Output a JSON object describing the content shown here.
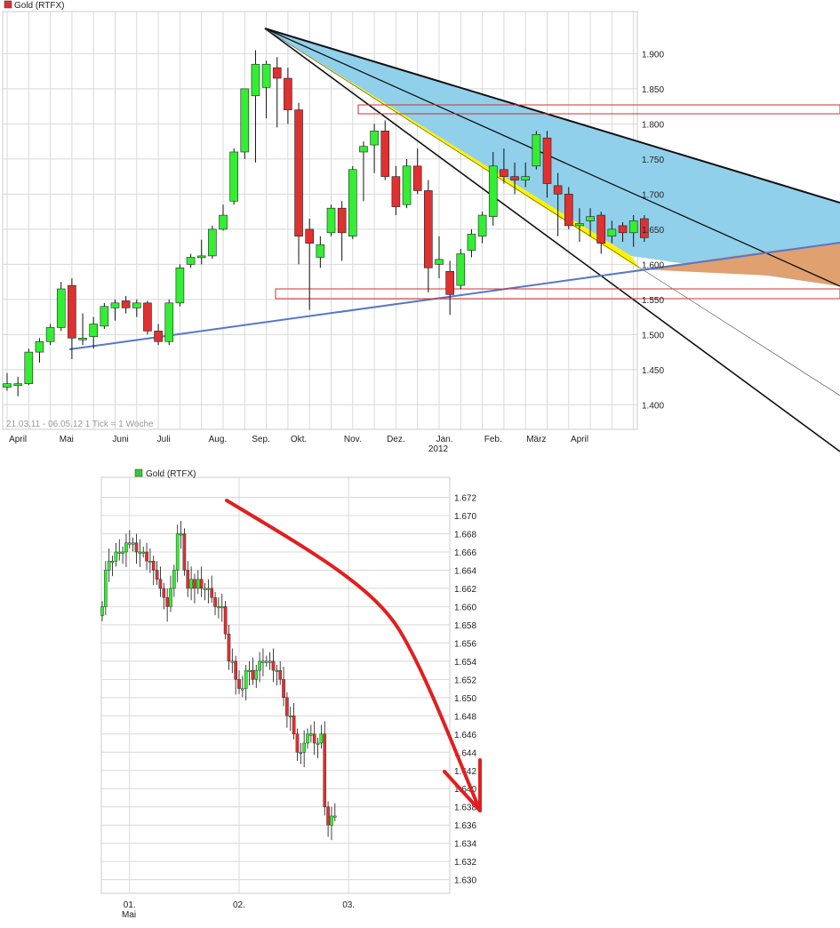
{
  "chart_data": [
    {
      "type": "candlestick",
      "legend": "Gold (RTFX)",
      "legend_color": "#e03030",
      "info": "21.03.11 - 06.05.12  1 Tick = 1 Woche",
      "y_ticks": [
        "1.900",
        "1.850",
        "1.800",
        "1.750",
        "1.700",
        "1.650",
        "1.600",
        "1.550",
        "1.500",
        "1.450",
        "1.400"
      ],
      "y_tick_values": [
        1900,
        1850,
        1800,
        1750,
        1700,
        1650,
        1600,
        1550,
        1500,
        1450,
        1400
      ],
      "ylim": [
        1365,
        1960
      ],
      "x_labels": [
        "April",
        "Mai",
        "Juni",
        "Juli",
        "Aug.",
        "Sep.",
        "Okt.",
        "Nov.",
        "Dez.",
        "Jan.",
        "Feb.",
        "März",
        "April"
      ],
      "x_label_index": [
        1,
        5.5,
        10.5,
        14.5,
        19.5,
        23.5,
        27,
        32,
        36,
        40.5,
        45,
        49,
        53
      ],
      "year_label": "2012",
      "candles": [
        {
          "o": 1425,
          "h": 1445,
          "l": 1420,
          "c": 1430
        },
        {
          "o": 1428,
          "h": 1440,
          "l": 1412,
          "c": 1430
        },
        {
          "o": 1430,
          "h": 1480,
          "l": 1428,
          "c": 1475
        },
        {
          "o": 1475,
          "h": 1495,
          "l": 1460,
          "c": 1490
        },
        {
          "o": 1490,
          "h": 1515,
          "l": 1485,
          "c": 1510
        },
        {
          "o": 1510,
          "h": 1575,
          "l": 1505,
          "c": 1565
        },
        {
          "o": 1570,
          "h": 1580,
          "l": 1465,
          "c": 1495
        },
        {
          "o": 1495,
          "h": 1530,
          "l": 1485,
          "c": 1495
        },
        {
          "o": 1497,
          "h": 1525,
          "l": 1480,
          "c": 1515
        },
        {
          "o": 1512,
          "h": 1545,
          "l": 1508,
          "c": 1540
        },
        {
          "o": 1538,
          "h": 1550,
          "l": 1520,
          "c": 1545
        },
        {
          "o": 1548,
          "h": 1555,
          "l": 1530,
          "c": 1538
        },
        {
          "o": 1538,
          "h": 1550,
          "l": 1525,
          "c": 1545
        },
        {
          "o": 1545,
          "h": 1548,
          "l": 1500,
          "c": 1505
        },
        {
          "o": 1505,
          "h": 1515,
          "l": 1485,
          "c": 1490
        },
        {
          "o": 1490,
          "h": 1550,
          "l": 1485,
          "c": 1545
        },
        {
          "o": 1545,
          "h": 1600,
          "l": 1540,
          "c": 1595
        },
        {
          "o": 1600,
          "h": 1615,
          "l": 1595,
          "c": 1610
        },
        {
          "o": 1610,
          "h": 1635,
          "l": 1600,
          "c": 1612
        },
        {
          "o": 1612,
          "h": 1655,
          "l": 1608,
          "c": 1650
        },
        {
          "o": 1650,
          "h": 1685,
          "l": 1648,
          "c": 1670
        },
        {
          "o": 1690,
          "h": 1765,
          "l": 1685,
          "c": 1760
        },
        {
          "o": 1760,
          "h": 1850,
          "l": 1750,
          "c": 1850
        },
        {
          "o": 1840,
          "h": 1905,
          "l": 1745,
          "c": 1885
        },
        {
          "o": 1852,
          "h": 1890,
          "l": 1808,
          "c": 1885
        },
        {
          "o": 1880,
          "h": 1895,
          "l": 1795,
          "c": 1865
        },
        {
          "o": 1865,
          "h": 1880,
          "l": 1800,
          "c": 1820
        },
        {
          "o": 1820,
          "h": 1830,
          "l": 1600,
          "c": 1640
        },
        {
          "o": 1650,
          "h": 1665,
          "l": 1535,
          "c": 1630
        },
        {
          "o": 1610,
          "h": 1640,
          "l": 1595,
          "c": 1628
        },
        {
          "o": 1645,
          "h": 1685,
          "l": 1640,
          "c": 1680
        },
        {
          "o": 1680,
          "h": 1690,
          "l": 1605,
          "c": 1645
        },
        {
          "o": 1640,
          "h": 1740,
          "l": 1636,
          "c": 1735
        },
        {
          "o": 1760,
          "h": 1775,
          "l": 1690,
          "c": 1768
        },
        {
          "o": 1770,
          "h": 1800,
          "l": 1730,
          "c": 1790
        },
        {
          "o": 1790,
          "h": 1805,
          "l": 1720,
          "c": 1725
        },
        {
          "o": 1725,
          "h": 1740,
          "l": 1670,
          "c": 1682
        },
        {
          "o": 1685,
          "h": 1750,
          "l": 1680,
          "c": 1740
        },
        {
          "o": 1740,
          "h": 1765,
          "l": 1700,
          "c": 1705
        },
        {
          "o": 1705,
          "h": 1720,
          "l": 1560,
          "c": 1595
        },
        {
          "o": 1600,
          "h": 1640,
          "l": 1580,
          "c": 1607
        },
        {
          "o": 1590,
          "h": 1605,
          "l": 1528,
          "c": 1557
        },
        {
          "o": 1570,
          "h": 1622,
          "l": 1565,
          "c": 1615
        },
        {
          "o": 1620,
          "h": 1650,
          "l": 1610,
          "c": 1643
        },
        {
          "o": 1640,
          "h": 1675,
          "l": 1630,
          "c": 1670
        },
        {
          "o": 1668,
          "h": 1760,
          "l": 1655,
          "c": 1740
        },
        {
          "o": 1735,
          "h": 1765,
          "l": 1715,
          "c": 1725
        },
        {
          "o": 1725,
          "h": 1745,
          "l": 1700,
          "c": 1720
        },
        {
          "o": 1720,
          "h": 1745,
          "l": 1710,
          "c": 1725
        },
        {
          "o": 1740,
          "h": 1790,
          "l": 1735,
          "c": 1785
        },
        {
          "o": 1780,
          "h": 1790,
          "l": 1695,
          "c": 1715
        },
        {
          "o": 1712,
          "h": 1730,
          "l": 1640,
          "c": 1700
        },
        {
          "o": 1700,
          "h": 1710,
          "l": 1650,
          "c": 1655
        },
        {
          "o": 1655,
          "h": 1680,
          "l": 1632,
          "c": 1658
        },
        {
          "o": 1662,
          "h": 1680,
          "l": 1640,
          "c": 1668
        },
        {
          "o": 1670,
          "h": 1675,
          "l": 1615,
          "c": 1630
        },
        {
          "o": 1640,
          "h": 1662,
          "l": 1630,
          "c": 1650
        },
        {
          "o": 1655,
          "h": 1660,
          "l": 1632,
          "c": 1645
        },
        {
          "o": 1645,
          "h": 1670,
          "l": 1625,
          "c": 1662
        },
        {
          "o": 1665,
          "h": 1670,
          "l": 1632,
          "c": 1638
        }
      ]
    },
    {
      "type": "candlestick",
      "legend": "Gold (RTFX)",
      "legend_color": "#33cc33",
      "y_ticks": [
        "1.672",
        "1.670",
        "1.668",
        "1.666",
        "1.664",
        "1.662",
        "1.660",
        "1.658",
        "1.656",
        "1.654",
        "1.652",
        "1.650",
        "1.648",
        "1.646",
        "1.644",
        "1.642",
        "1.640",
        "1.638",
        "1.636",
        "1.634",
        "1.632",
        "1.630"
      ],
      "y_tick_values": [
        1672,
        1670,
        1668,
        1666,
        1664,
        1662,
        1660,
        1658,
        1656,
        1654,
        1652,
        1650,
        1648,
        1646,
        1644,
        1642,
        1640,
        1638,
        1636,
        1634,
        1632,
        1630
      ],
      "ylim": [
        1628.5,
        1674.2
      ],
      "x_labels": [
        "01.",
        "02.",
        "03."
      ],
      "x_label_index": [
        8,
        40,
        72
      ],
      "x_sublabel": "Mai"
    }
  ],
  "colors": {
    "up": "#33ee33",
    "down": "#e03030",
    "grid": "#d8d8d8",
    "trend": "#5577cc",
    "arrow": "#e02020"
  }
}
